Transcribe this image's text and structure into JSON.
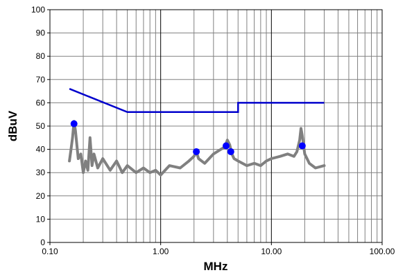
{
  "chart_data": {
    "type": "line",
    "title": "",
    "xlabel": "MHz",
    "ylabel": "dBuV",
    "x_scale": "log",
    "xlim": [
      0.1,
      100
    ],
    "ylim": [
      0,
      100
    ],
    "x_ticks": [
      0.1,
      1,
      10,
      100
    ],
    "x_tick_labels": [
      "0.10",
      "1.00",
      "10.00",
      "100.00"
    ],
    "y_ticks": [
      0,
      10,
      20,
      30,
      40,
      50,
      60,
      70,
      80,
      90,
      100
    ],
    "y_tick_labels": [
      "0",
      "10",
      "20",
      "30",
      "40",
      "50",
      "60",
      "70",
      "80",
      "90",
      "100"
    ],
    "grid": true,
    "legend": "none",
    "colors": {
      "limit": "#0000cc",
      "scan": "#808080",
      "markers": "#0000ff"
    },
    "series": [
      {
        "role": "limit",
        "x": [
          0.15,
          0.5,
          0.5,
          5,
          5,
          30
        ],
        "y": [
          66,
          56,
          56,
          56,
          60,
          60
        ]
      },
      {
        "role": "scan",
        "x": [
          0.15,
          0.155,
          0.16,
          0.165,
          0.17,
          0.175,
          0.18,
          0.19,
          0.2,
          0.21,
          0.22,
          0.23,
          0.24,
          0.25,
          0.27,
          0.3,
          0.35,
          0.4,
          0.45,
          0.5,
          0.6,
          0.7,
          0.8,
          0.9,
          1.0,
          1.2,
          1.5,
          1.8,
          2.0,
          2.1,
          2.2,
          2.5,
          3.0,
          3.5,
          3.8,
          4.0,
          4.2,
          4.4,
          4.6,
          5.0,
          6.0,
          7.0,
          8.0,
          9.0,
          10.0,
          12.0,
          14.0,
          16.0,
          17.0,
          18.0,
          18.5,
          19.0,
          20.0,
          22.0,
          25.0,
          30.0
        ],
        "y": [
          35,
          40,
          45,
          52,
          48,
          42,
          36,
          38,
          30,
          35,
          31,
          45,
          33,
          38,
          32,
          36,
          31,
          35,
          30,
          33,
          30,
          32,
          30,
          31,
          29,
          33,
          32,
          35,
          37,
          39,
          36,
          34,
          38,
          40,
          41,
          44,
          42,
          38,
          36,
          35,
          33,
          34,
          33,
          35,
          36,
          37,
          38,
          37,
          39,
          44,
          49,
          46,
          38,
          34,
          32,
          33
        ]
      }
    ],
    "markers": {
      "x": [
        0.165,
        2.1,
        3.9,
        4.3,
        19.0
      ],
      "y": [
        51,
        39,
        41.5,
        39,
        41.5
      ]
    }
  }
}
